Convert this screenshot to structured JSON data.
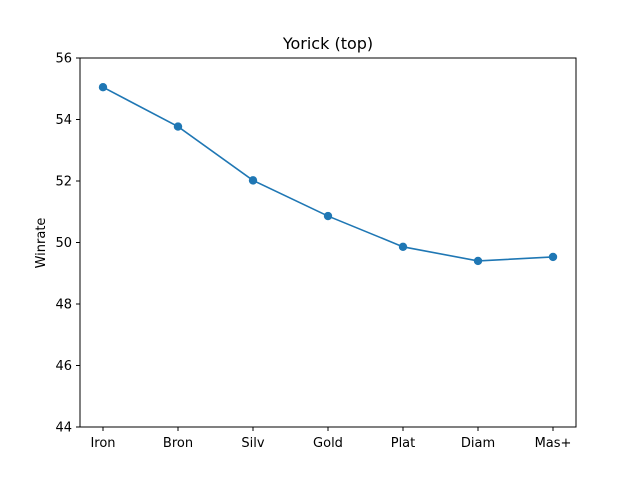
{
  "chart_data": {
    "type": "line",
    "title": "Yorick (top)",
    "xlabel": "",
    "ylabel": "Winrate",
    "categories": [
      "Iron",
      "Bron",
      "Silv",
      "Gold",
      "Plat",
      "Diam",
      "Mas+"
    ],
    "values": [
      55.05,
      53.77,
      52.02,
      50.86,
      49.86,
      49.4,
      49.53
    ],
    "ylim": [
      44,
      56
    ],
    "yticks": [
      44,
      46,
      48,
      50,
      52,
      54,
      56
    ],
    "grid": false,
    "legend": "none",
    "color": "#1f77b4"
  }
}
